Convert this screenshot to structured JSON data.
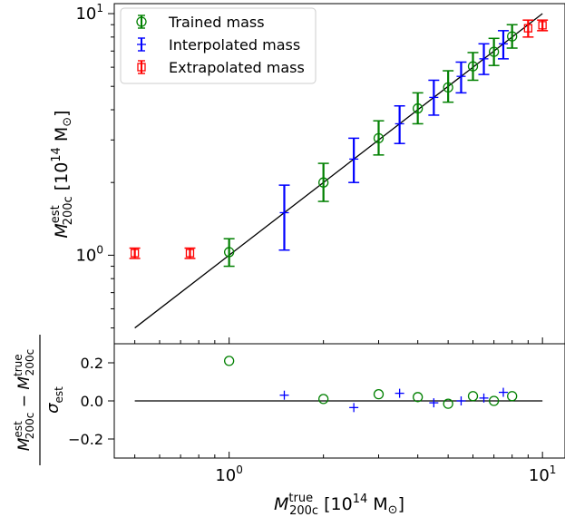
{
  "chart_data": [
    {
      "type": "scatter",
      "panel": "main",
      "xscale": "log",
      "yscale": "log",
      "xlim": [
        0.43,
        11.8
      ],
      "ylim": [
        0.43,
        11.0
      ],
      "x_ticks": [
        {
          "value": 1,
          "label": "10^0"
        },
        {
          "value": 10,
          "label": "10^1"
        }
      ],
      "y_ticks": [
        {
          "value": 1,
          "label": "10^0"
        },
        {
          "value": 10,
          "label": "10^1"
        }
      ],
      "ylabel": {
        "main": "M",
        "sup": "est",
        "sub": "200c",
        "units": "[10",
        "units_exp": "14",
        "units_end": "M",
        "units_sun": "⊙",
        "units_close": "]"
      },
      "legend": {
        "placement": "top-left",
        "entries": [
          {
            "label": "Trained mass",
            "color": "#008000",
            "marker": "circle"
          },
          {
            "label": "Interpolated mass",
            "color": "#0000ff",
            "marker": "plus"
          },
          {
            "label": "Extrapolated mass",
            "color": "#ff0000",
            "marker": "square"
          }
        ]
      },
      "reference_line": {
        "from": [
          0.5,
          0.5
        ],
        "to": [
          10,
          10
        ],
        "color": "#000000"
      },
      "series": [
        {
          "name": "Trained mass",
          "color": "#008000",
          "marker": "circle",
          "points": [
            {
              "x": 1.0,
              "y": 1.03,
              "lo": 0.9,
              "hi": 1.17
            },
            {
              "x": 2.0,
              "y": 2.0,
              "lo": 1.67,
              "hi": 2.4
            },
            {
              "x": 3.0,
              "y": 3.05,
              "lo": 2.6,
              "hi": 3.6
            },
            {
              "x": 4.0,
              "y": 4.05,
              "lo": 3.5,
              "hi": 4.7
            },
            {
              "x": 5.0,
              "y": 4.95,
              "lo": 4.3,
              "hi": 5.8
            },
            {
              "x": 6.0,
              "y": 6.05,
              "lo": 5.3,
              "hi": 6.9
            },
            {
              "x": 7.0,
              "y": 6.95,
              "lo": 6.1,
              "hi": 7.9
            },
            {
              "x": 8.0,
              "y": 8.05,
              "lo": 7.2,
              "hi": 9.0
            }
          ]
        },
        {
          "name": "Interpolated mass",
          "color": "#0000ff",
          "marker": "plus",
          "points": [
            {
              "x": 1.5,
              "y": 1.5,
              "lo": 1.05,
              "hi": 1.95
            },
            {
              "x": 2.5,
              "y": 2.5,
              "lo": 2.0,
              "hi": 3.05
            },
            {
              "x": 3.5,
              "y": 3.5,
              "lo": 2.9,
              "hi": 4.15
            },
            {
              "x": 4.5,
              "y": 4.5,
              "lo": 3.8,
              "hi": 5.3
            },
            {
              "x": 5.5,
              "y": 5.5,
              "lo": 4.7,
              "hi": 6.3
            },
            {
              "x": 6.5,
              "y": 6.5,
              "lo": 5.6,
              "hi": 7.5
            },
            {
              "x": 7.5,
              "y": 7.5,
              "lo": 6.5,
              "hi": 8.5
            }
          ]
        },
        {
          "name": "Extrapolated mass",
          "color": "#ff0000",
          "marker": "square",
          "points": [
            {
              "x": 0.5,
              "y": 1.02,
              "lo": 0.97,
              "hi": 1.07
            },
            {
              "x": 0.75,
              "y": 1.02,
              "lo": 0.97,
              "hi": 1.07
            },
            {
              "x": 9.0,
              "y": 8.7,
              "lo": 8.0,
              "hi": 9.4
            },
            {
              "x": 10.0,
              "y": 8.95,
              "lo": 8.5,
              "hi": 9.4
            }
          ]
        }
      ]
    },
    {
      "type": "scatter",
      "panel": "residual",
      "xscale": "log",
      "xlim": [
        0.43,
        11.8
      ],
      "ylim": [
        -0.3,
        0.3
      ],
      "x_ticks": [
        {
          "value": 1,
          "label": "10^0"
        },
        {
          "value": 10,
          "label": "10^1"
        }
      ],
      "y_ticks": [
        {
          "value": 0.2,
          "label": "0.2"
        },
        {
          "value": 0.0,
          "label": "0.0"
        },
        {
          "value": -0.2,
          "label": "−0.2"
        }
      ],
      "xlabel": {
        "main": "M",
        "sup": "true",
        "sub": "200c",
        "units": "[10",
        "units_exp": "14",
        "units_end": "M",
        "units_sun": "⊙",
        "units_close": "]"
      },
      "ylabel": {
        "num_a": "M",
        "num_a_sup": "est",
        "num_a_sub": "200c",
        "minus": "−",
        "num_b": "M",
        "num_b_sup": "true",
        "num_b_sub": "200c",
        "den": "σ",
        "den_sub": "est"
      },
      "reference_line": {
        "y": 0.0,
        "from": 0.5,
        "to": 10
      },
      "series": [
        {
          "name": "Trained mass",
          "color": "#008000",
          "marker": "circle",
          "points": [
            {
              "x": 1.0,
              "y": 0.21
            },
            {
              "x": 2.0,
              "y": 0.01
            },
            {
              "x": 3.0,
              "y": 0.035
            },
            {
              "x": 4.0,
              "y": 0.02
            },
            {
              "x": 5.0,
              "y": -0.015
            },
            {
              "x": 6.0,
              "y": 0.025
            },
            {
              "x": 7.0,
              "y": 0.0
            },
            {
              "x": 8.0,
              "y": 0.025
            }
          ]
        },
        {
          "name": "Interpolated mass",
          "color": "#0000ff",
          "marker": "plus",
          "points": [
            {
              "x": 1.5,
              "y": 0.03
            },
            {
              "x": 2.5,
              "y": -0.035
            },
            {
              "x": 3.5,
              "y": 0.04
            },
            {
              "x": 4.5,
              "y": -0.01
            },
            {
              "x": 5.5,
              "y": 0.0
            },
            {
              "x": 6.5,
              "y": 0.015
            },
            {
              "x": 7.5,
              "y": 0.045
            }
          ]
        }
      ]
    }
  ]
}
